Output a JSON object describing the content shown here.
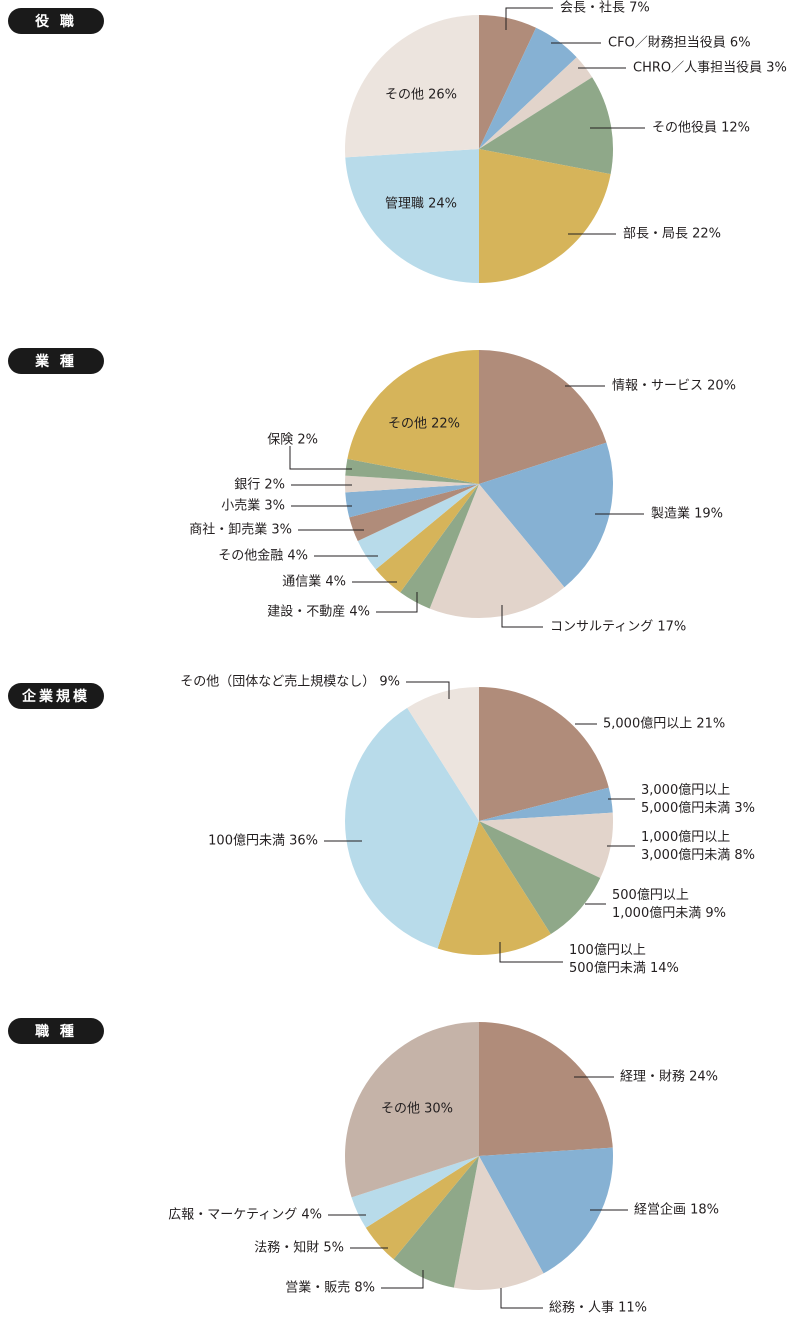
{
  "chart_data": [
    {
      "type": "pie",
      "title": "役 職",
      "slices": [
        {
          "label": "会長・社長",
          "value": 7,
          "text": "会長・社長 7%",
          "color": "#b08c7a"
        },
        {
          "label": "CFO／財務担当役員",
          "value": 6,
          "text": "CFO／財務担当役員 6%",
          "color": "#86b1d3"
        },
        {
          "label": "CHRO／人事担当役員",
          "value": 3,
          "text": "CHRO／人事担当役員 3%",
          "color": "#e2d4cb"
        },
        {
          "label": "その他役員",
          "value": 12,
          "text": "その他役員 12%",
          "color": "#8fa889"
        },
        {
          "label": "部長・局長",
          "value": 22,
          "text": "部長・局長 22%",
          "color": "#d6b45a"
        },
        {
          "label": "管理職",
          "value": 24,
          "text": "管理職 24%",
          "color": "#b8dbea"
        },
        {
          "label": "その他",
          "value": 26,
          "text": "その他 26%",
          "color": "#ece4de"
        }
      ]
    },
    {
      "type": "pie",
      "title": "業 種",
      "slices": [
        {
          "label": "情報・サービス",
          "value": 20,
          "text": "情報・サービス 20%",
          "color": "#b08c7a"
        },
        {
          "label": "製造業",
          "value": 19,
          "text": "製造業 19%",
          "color": "#86b1d3"
        },
        {
          "label": "コンサルティング",
          "value": 17,
          "text": "コンサルティング 17%",
          "color": "#e2d4cb"
        },
        {
          "label": "建設・不動産",
          "value": 4,
          "text": "建設・不動産 4%",
          "color": "#8fa889"
        },
        {
          "label": "通信業",
          "value": 4,
          "text": "通信業 4%",
          "color": "#d6b45a"
        },
        {
          "label": "その他金融",
          "value": 4,
          "text": "その他金融 4%",
          "color": "#b8dbea"
        },
        {
          "label": "商社・卸売業",
          "value": 3,
          "text": "商社・卸売業 3%",
          "color": "#b08c7a"
        },
        {
          "label": "小売業",
          "value": 3,
          "text": "小売業 3%",
          "color": "#86b1d3"
        },
        {
          "label": "銀行",
          "value": 2,
          "text": "銀行 2%",
          "color": "#e2d4cb"
        },
        {
          "label": "保険",
          "value": 2,
          "text": "保険 2%",
          "color": "#8fa889"
        },
        {
          "label": "その他",
          "value": 22,
          "text": "その他 22%",
          "color": "#d6b45a"
        }
      ]
    },
    {
      "type": "pie",
      "title": "企業規模",
      "slices": [
        {
          "label": "5,000億円以上",
          "value": 21,
          "text": "5,000億円以上 21%",
          "color": "#b08c7a"
        },
        {
          "label": "3,000億円以上 5,000億円未満",
          "value": 3,
          "text": "3,000億円以上\n5,000億円未満 3%",
          "color": "#86b1d3"
        },
        {
          "label": "1,000億円以上 3,000億円未満",
          "value": 8,
          "text": "1,000億円以上\n3,000億円未満 8%",
          "color": "#e2d4cb"
        },
        {
          "label": "500億円以上 1,000億円未満",
          "value": 9,
          "text": "500億円以上\n1,000億円未満 9%",
          "color": "#8fa889"
        },
        {
          "label": "100億円以上 500億円未満",
          "value": 14,
          "text": "100億円以上\n500億円未満 14%",
          "color": "#d6b45a"
        },
        {
          "label": "100億円未満",
          "value": 36,
          "text": "100億円未満 36%",
          "color": "#b8dbea"
        },
        {
          "label": "その他（団体など売上規模なし）",
          "value": 9,
          "text": "その他（団体など売上規模なし） 9%",
          "color": "#ece4de"
        }
      ]
    },
    {
      "type": "pie",
      "title": "職 種",
      "slices": [
        {
          "label": "経理・財務",
          "value": 24,
          "text": "経理・財務 24%",
          "color": "#b08c7a"
        },
        {
          "label": "経営企画",
          "value": 18,
          "text": "経営企画 18%",
          "color": "#86b1d3"
        },
        {
          "label": "総務・人事",
          "value": 11,
          "text": "総務・人事 11%",
          "color": "#e2d4cb"
        },
        {
          "label": "営業・販売",
          "value": 8,
          "text": "営業・販売 8%",
          "color": "#8fa889"
        },
        {
          "label": "法務・知財",
          "value": 5,
          "text": "法務・知財 5%",
          "color": "#d6b45a"
        },
        {
          "label": "広報・マーケティング",
          "value": 4,
          "text": "広報・マーケティング 4%",
          "color": "#b8dbea"
        },
        {
          "label": "その他",
          "value": 30,
          "text": "その他 30%",
          "color": "#c5b3a8"
        }
      ]
    }
  ]
}
